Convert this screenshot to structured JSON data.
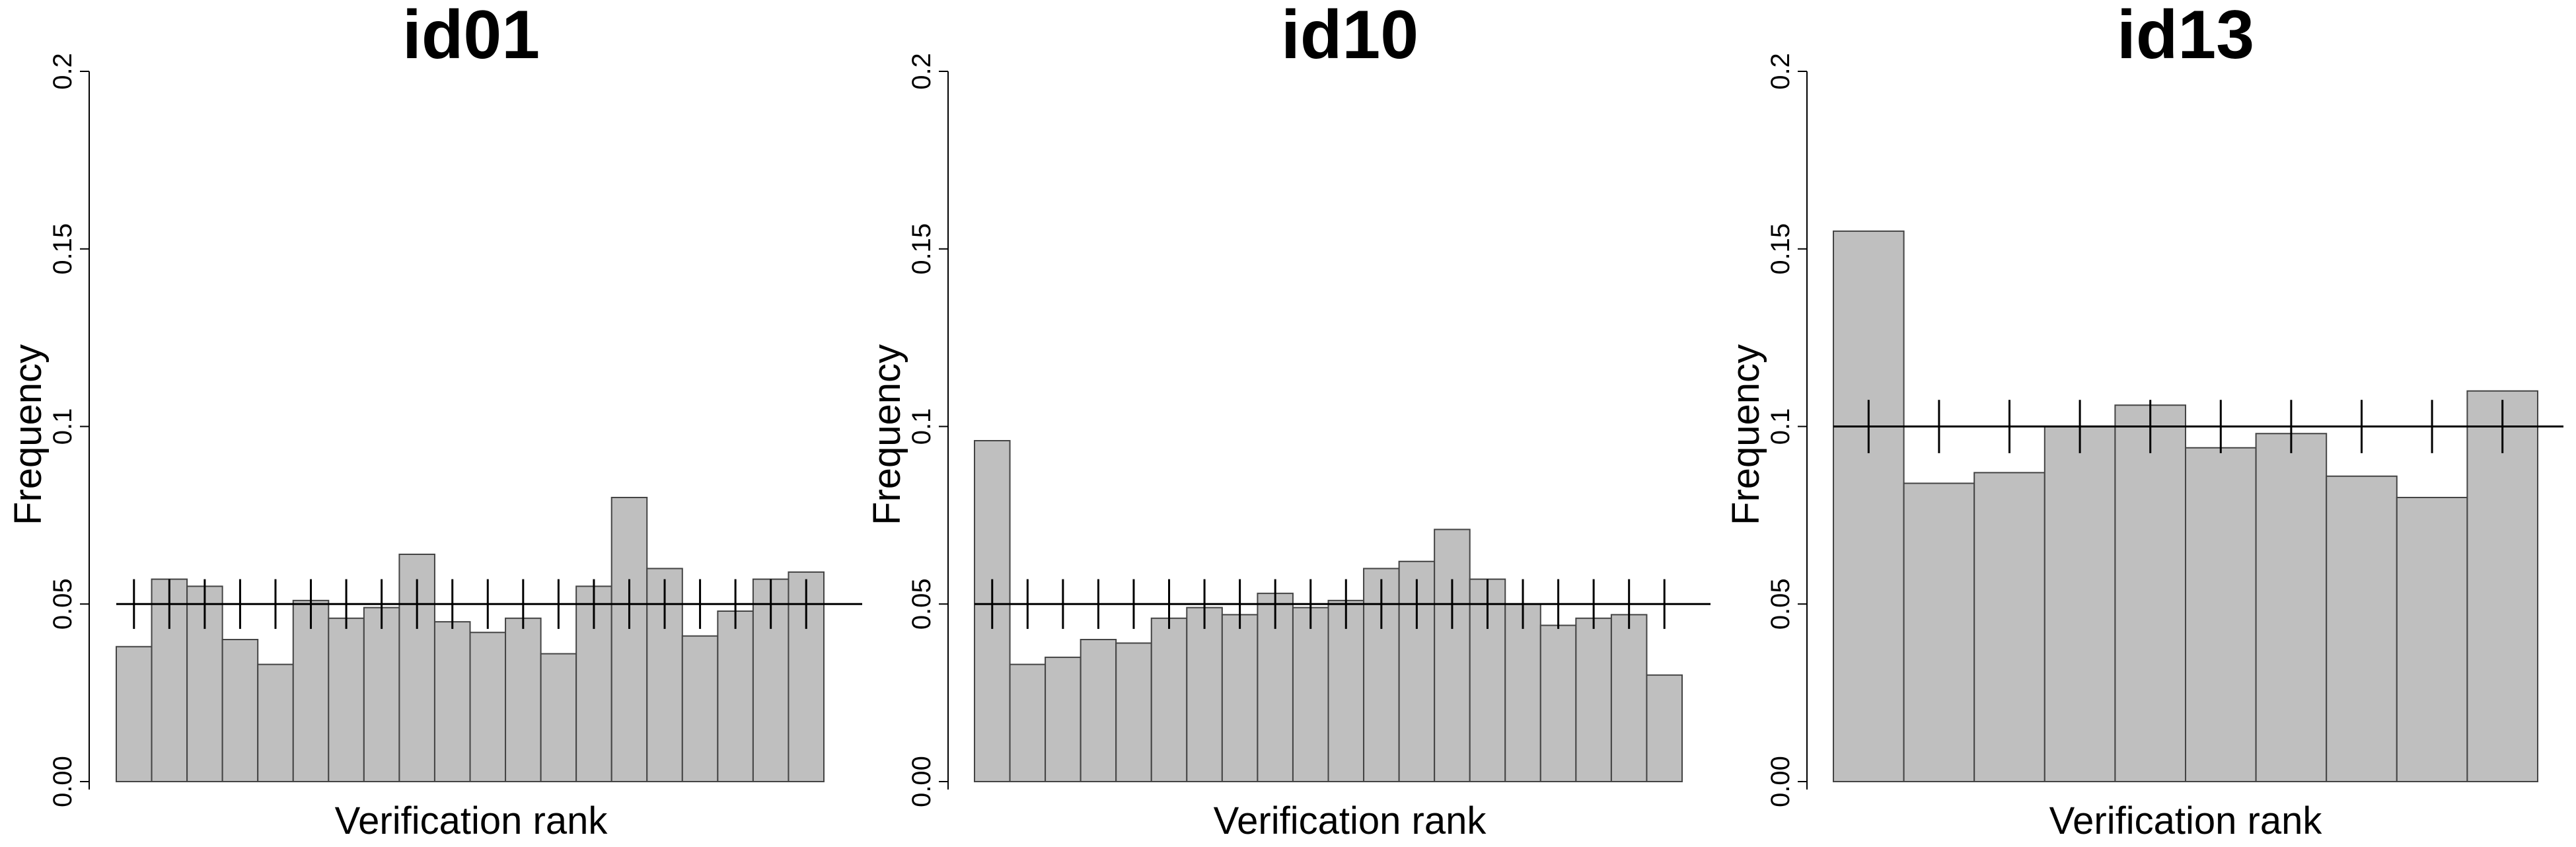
{
  "chart_data": [
    {
      "type": "bar",
      "title": "id01",
      "xlabel": "Verification rank",
      "ylabel": "Frequency",
      "ylim": [
        0,
        0.2
      ],
      "yticks": [
        "0.00",
        "0.05",
        "0.1",
        "0.15",
        "0.2"
      ],
      "reference_line": 0.05,
      "error_bars": [
        0.043,
        0.057
      ],
      "values": [
        0.038,
        0.057,
        0.055,
        0.04,
        0.033,
        0.051,
        0.046,
        0.049,
        0.064,
        0.045,
        0.042,
        0.046,
        0.036,
        0.055,
        0.08,
        0.06,
        0.041,
        0.048,
        0.057,
        0.059
      ]
    },
    {
      "type": "bar",
      "title": "id10",
      "xlabel": "Verification rank",
      "ylabel": "Frequency",
      "ylim": [
        0,
        0.2
      ],
      "yticks": [
        "0.00",
        "0.05",
        "0.1",
        "0.15",
        "0.2"
      ],
      "reference_line": 0.05,
      "error_bars": [
        0.043,
        0.057
      ],
      "values": [
        0.096,
        0.033,
        0.035,
        0.04,
        0.039,
        0.046,
        0.049,
        0.047,
        0.053,
        0.049,
        0.051,
        0.06,
        0.062,
        0.071,
        0.057,
        0.05,
        0.044,
        0.046,
        0.047,
        0.03
      ]
    },
    {
      "type": "bar",
      "title": "id13",
      "xlabel": "Verification rank",
      "ylabel": "Frequency",
      "ylim": [
        0,
        0.2
      ],
      "yticks": [
        "0.00",
        "0.05",
        "0.1",
        "0.15",
        "0.2"
      ],
      "reference_line": 0.1,
      "error_bars": [
        0.0925,
        0.1075
      ],
      "values": [
        0.155,
        0.084,
        0.087,
        0.1,
        0.106,
        0.094,
        0.098,
        0.086,
        0.08,
        0.11
      ]
    }
  ]
}
